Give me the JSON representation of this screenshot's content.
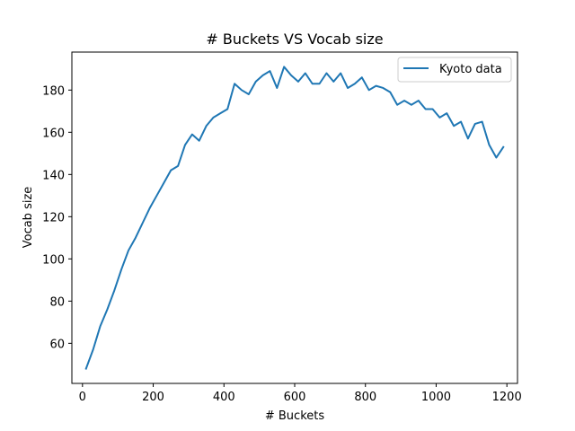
{
  "chart_data": {
    "type": "line",
    "title": "# Buckets VS Vocab size",
    "xlabel": "# Buckets",
    "ylabel": "Vocab size",
    "xlim": [
      -30,
      1230
    ],
    "ylim": [
      41,
      198
    ],
    "xticks": [
      0,
      200,
      400,
      600,
      800,
      1000,
      1200
    ],
    "yticks": [
      60,
      80,
      100,
      120,
      140,
      160,
      180
    ],
    "grid": false,
    "legend": "top-right",
    "series": [
      {
        "name": "Kyoto data",
        "color": "#1f77b4",
        "x": [
          10,
          30,
          50,
          70,
          90,
          110,
          130,
          150,
          170,
          190,
          210,
          230,
          250,
          270,
          290,
          310,
          330,
          350,
          370,
          390,
          410,
          430,
          450,
          470,
          490,
          510,
          530,
          550,
          570,
          590,
          610,
          630,
          650,
          670,
          690,
          710,
          730,
          750,
          770,
          790,
          810,
          830,
          850,
          870,
          890,
          910,
          930,
          950,
          970,
          990,
          1010,
          1030,
          1050,
          1070,
          1090,
          1110,
          1130,
          1150,
          1170,
          1190
        ],
        "y": [
          48,
          57,
          68,
          76,
          85,
          95,
          104,
          110,
          117,
          124,
          130,
          136,
          142,
          144,
          154,
          159,
          156,
          163,
          167,
          169,
          171,
          183,
          180,
          178,
          184,
          187,
          189,
          181,
          191,
          187,
          184,
          188,
          183,
          183,
          188,
          184,
          188,
          181,
          183,
          186,
          180,
          182,
          181,
          179,
          173,
          175,
          173,
          175,
          171,
          171,
          167,
          169,
          163,
          165,
          157,
          164,
          165,
          154,
          148,
          153
        ]
      }
    ]
  }
}
